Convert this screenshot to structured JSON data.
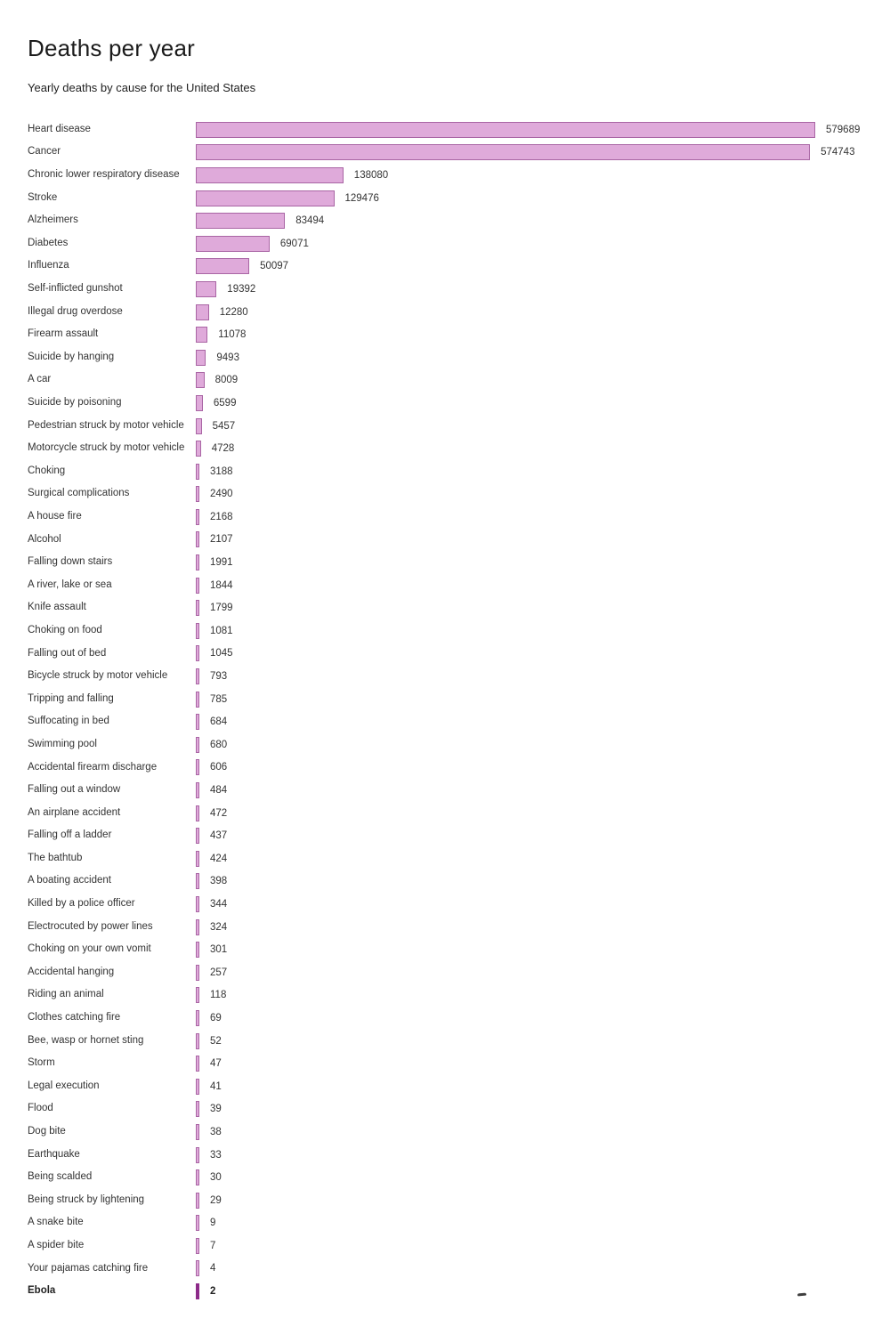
{
  "page": {
    "title": "Deaths per year",
    "subtitle": "Yearly deaths by cause for the United States"
  },
  "chart_data": {
    "type": "bar",
    "orientation": "horizontal",
    "title": "Deaths per year",
    "subtitle": "Yearly deaths by cause for the United States",
    "value_labels_shown": true,
    "axis_shown": false,
    "grid": false,
    "legend": "none",
    "xlim": [
      0,
      579689
    ],
    "colors": {
      "bar_fill": "#dfaada",
      "bar_border": "#a965a4",
      "highlight_bar": "#8d2b89",
      "text": "#333333"
    },
    "highlight_category": "Ebola",
    "categories": [
      "Heart disease",
      "Cancer",
      "Chronic lower respiratory disease",
      "Stroke",
      "Alzheimers",
      "Diabetes",
      "Influenza",
      "Self-inflicted gunshot",
      "Illegal drug overdose",
      "Firearm assault",
      "Suicide by hanging",
      "A car",
      "Suicide by poisoning",
      "Pedestrian struck by motor vehicle",
      "Motorcycle struck by motor vehicle",
      "Choking",
      "Surgical complications",
      "A house fire",
      "Alcohol",
      "Falling down stairs",
      "A river, lake or sea",
      "Knife assault",
      "Choking on food",
      "Falling out of bed",
      "Bicycle struck by motor vehicle",
      "Tripping and falling",
      "Suffocating in bed",
      "Swimming pool",
      "Accidental firearm discharge",
      "Falling out a window",
      "An airplane accident",
      "Falling off a ladder",
      "The bathtub",
      "A boating accident",
      "Killed by a police officer",
      "Electrocuted by power lines",
      "Choking on your own vomit",
      "Accidental hanging",
      "Riding an animal",
      "Clothes catching fire",
      "Bee, wasp or hornet sting",
      "Storm",
      "Legal execution",
      "Flood",
      "Dog bite",
      "Earthquake",
      "Being scalded",
      "Being struck by lightening",
      "A snake bite",
      "A spider bite",
      "Your pajamas catching fire",
      "Ebola"
    ],
    "values": [
      579689,
      574743,
      138080,
      129476,
      83494,
      69071,
      50097,
      19392,
      12280,
      11078,
      9493,
      8009,
      6599,
      5457,
      4728,
      3188,
      2490,
      2168,
      2107,
      1991,
      1844,
      1799,
      1081,
      1045,
      793,
      785,
      684,
      680,
      606,
      484,
      472,
      437,
      424,
      398,
      344,
      324,
      301,
      257,
      118,
      69,
      52,
      47,
      41,
      39,
      38,
      33,
      30,
      29,
      9,
      7,
      4,
      2
    ]
  }
}
